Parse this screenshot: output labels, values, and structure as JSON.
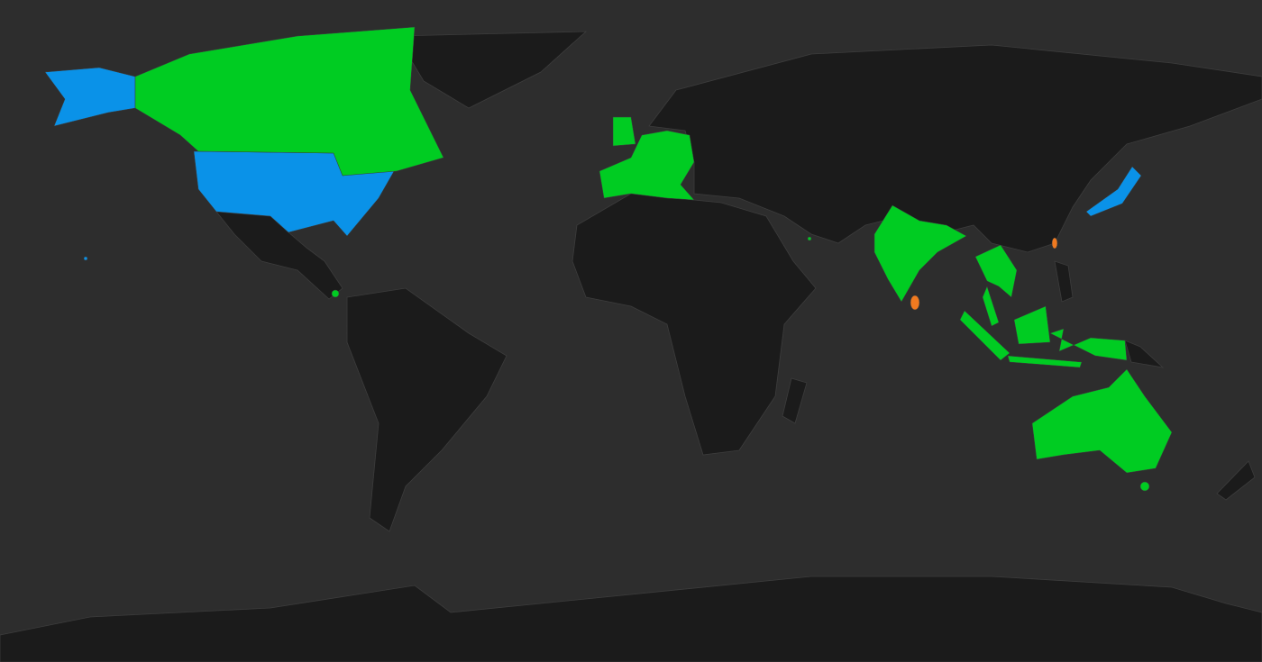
{
  "map": {
    "colors": {
      "ocean": "#2d2d2d",
      "land": "#1b1b1b",
      "border": "#3c3c3c",
      "green": "#00cc22",
      "blue": "#0a92e8",
      "orange": "#f07a20"
    },
    "highlighted": {
      "blue": [
        "united-states",
        "japan"
      ],
      "green": [
        "canada",
        "united-kingdom",
        "western-europe",
        "india",
        "thailand",
        "vietnam",
        "malaysia",
        "indonesia",
        "australia",
        "costa-rica",
        "qatar"
      ],
      "orange": [
        "sri-lanka",
        "taiwan"
      ]
    }
  }
}
